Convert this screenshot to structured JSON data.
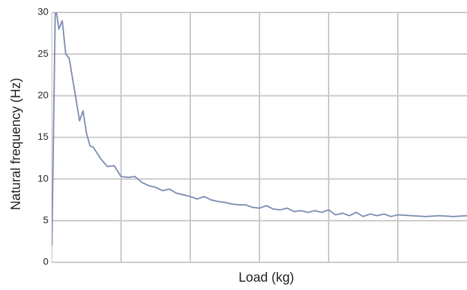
{
  "chart_data": {
    "type": "line",
    "x_label": "Load (kg)",
    "y_label": "Natural frequency (Hz)",
    "x": [
      0,
      0.05,
      0.1,
      0.15,
      0.2,
      0.25,
      0.3,
      0.35,
      0.4,
      0.45,
      0.5,
      0.55,
      0.6,
      0.7,
      0.8,
      0.9,
      1.0,
      1.1,
      1.2,
      1.3,
      1.4,
      1.5,
      1.6,
      1.7,
      1.8,
      1.9,
      2.0,
      2.1,
      2.2,
      2.3,
      2.4,
      2.5,
      2.6,
      2.7,
      2.8,
      2.9,
      3.0,
      3.1,
      3.2,
      3.3,
      3.4,
      3.5,
      3.6,
      3.7,
      3.8,
      3.9,
      4.0,
      4.1,
      4.2,
      4.3,
      4.4,
      4.5,
      4.6,
      4.7,
      4.8,
      4.9,
      5.0,
      5.2,
      5.4,
      5.6,
      5.8,
      6.0
    ],
    "series": [
      {
        "color": "#7f8fb2",
        "values": [
          2,
          31,
          28,
          29,
          25,
          24.5,
          22,
          19.5,
          17,
          18.2,
          15.5,
          14,
          13.8,
          12.5,
          11.5,
          11.6,
          10.3,
          10.2,
          10.3,
          9.6,
          9.2,
          9.0,
          8.6,
          8.8,
          8.3,
          8.1,
          7.9,
          7.6,
          7.9,
          7.5,
          7.3,
          7.2,
          7.0,
          6.9,
          6.9,
          6.6,
          6.5,
          6.8,
          6.4,
          6.3,
          6.5,
          6.1,
          6.2,
          6.0,
          6.2,
          6.0,
          6.3,
          5.7,
          5.9,
          5.6,
          6.0,
          5.5,
          5.8,
          5.6,
          5.8,
          5.5,
          5.7,
          5.6,
          5.5,
          5.6,
          5.5,
          5.6
        ]
      }
    ],
    "xlim": [
      0,
      6
    ],
    "xticks": [
      1,
      2,
      3,
      4,
      5
    ],
    "ylim": [
      0,
      30
    ],
    "yticks": [
      0,
      5,
      10,
      15,
      20,
      25,
      30
    ],
    "grid": true
  }
}
